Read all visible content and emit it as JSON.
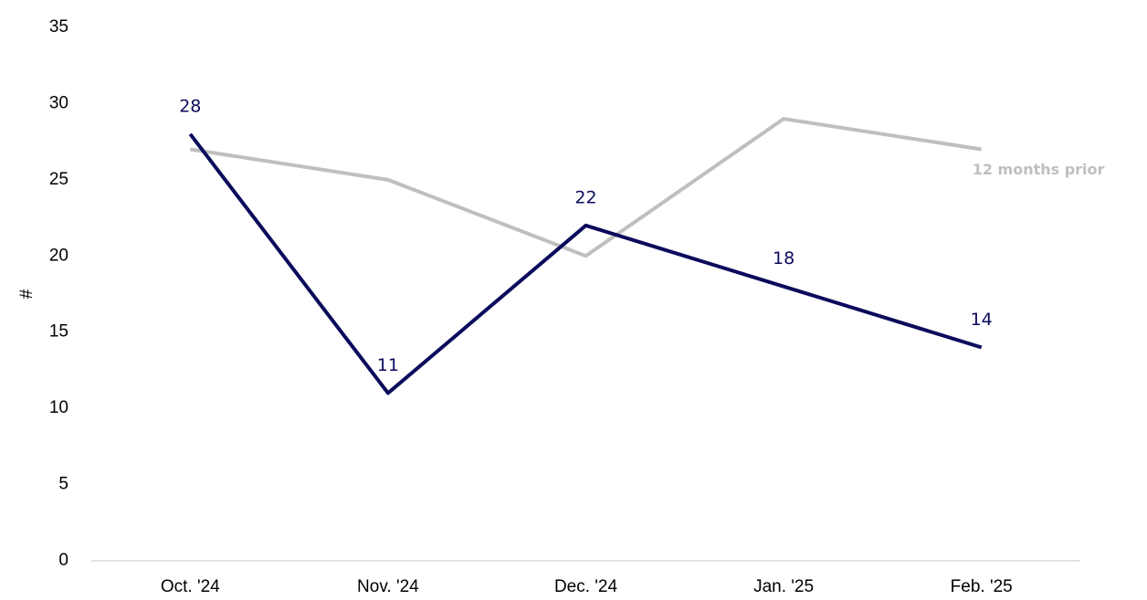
{
  "chart_data": {
    "type": "line",
    "categories": [
      "Oct. '24",
      "Nov. '24",
      "Dec. '24",
      "Jan. '25",
      "Feb. '25"
    ],
    "series": [
      {
        "color": "#0b0b5c",
        "values": [
          28,
          11,
          22,
          18,
          14
        ],
        "data_labels": true
      },
      {
        "name": "12 months prior",
        "color": "#bfbfbf",
        "values": [
          27,
          25,
          20,
          29,
          27
        ],
        "data_labels": false
      }
    ],
    "y_label": "#",
    "ylim": [
      0,
      35
    ],
    "yticks": [
      0,
      5,
      10,
      15,
      20,
      25,
      30,
      35
    ],
    "grid": false
  }
}
